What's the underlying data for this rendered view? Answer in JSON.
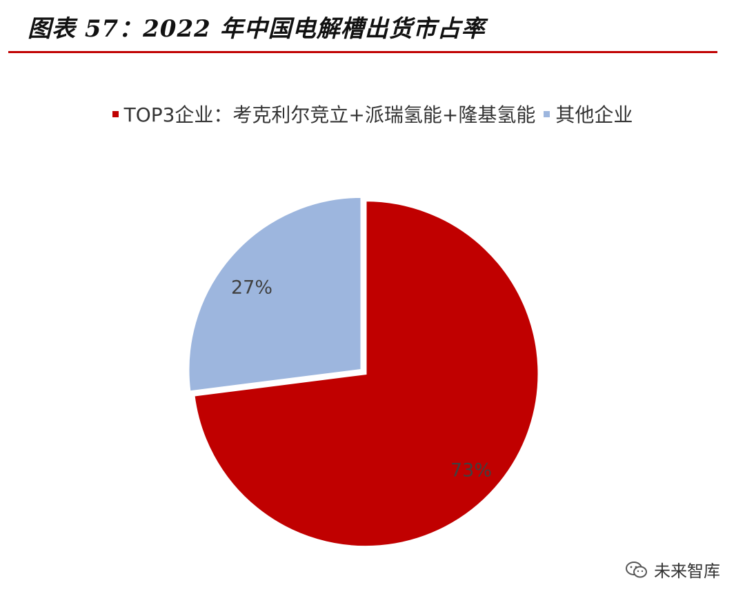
{
  "title": "图表 57：2022 年中国电解槽出货市占率",
  "watermark": "未来智库",
  "chart_data": {
    "type": "pie",
    "title": "图表 57：2022 年中国电解槽出货市占率",
    "legend_position": "top-center",
    "slices": [
      {
        "name": "TOP3企业：考克利尔竞立+派瑞氢能+隆基氢能",
        "value": 73,
        "label": "73%",
        "color": "#c00000"
      },
      {
        "name": "其他企业",
        "value": 27,
        "label": "27%",
        "color": "#9db6de"
      }
    ]
  }
}
